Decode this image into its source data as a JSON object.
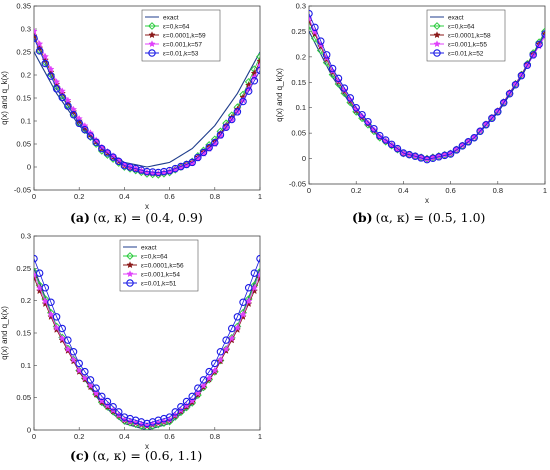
{
  "chart_data": [
    {
      "type": "line",
      "panel_label": "(a)",
      "caption": "(α, κ) = (0.4, 0.9)",
      "xlabel": "x",
      "ylabel": "q(x) and q_k(x)",
      "xlim": [
        0,
        1
      ],
      "ylim": [
        -0.05,
        0.35
      ],
      "xticks": [
        0,
        0.2,
        0.4,
        0.6,
        0.8,
        1
      ],
      "xtick_labels": [
        "0",
        "0.2",
        "0.4",
        "0.6",
        "0.8",
        "1"
      ],
      "yticks": [
        -0.05,
        0,
        0.05,
        0.1,
        0.15,
        0.2,
        0.25,
        0.3,
        0.35
      ],
      "ytick_labels": [
        "-0.05",
        "0",
        "0.05",
        "0.1",
        "0.15",
        "0.2",
        "0.25",
        "0.3",
        "0.35"
      ],
      "legend_position": "top-right",
      "series": [
        {
          "name": "exact",
          "color": "#1f3d8c",
          "marker": "none",
          "x": [
            0,
            0.1,
            0.2,
            0.3,
            0.4,
            0.5,
            0.6,
            0.7,
            0.8,
            0.9,
            1
          ],
          "y": [
            0.25,
            0.16,
            0.09,
            0.04,
            0.01,
            0.0,
            0.01,
            0.04,
            0.09,
            0.16,
            0.25
          ]
        },
        {
          "name": "ε=0,k=64",
          "color": "#2ecc40",
          "marker": "diamond",
          "x": [
            0,
            0.1,
            0.2,
            0.3,
            0.4,
            0.5,
            0.55,
            0.6,
            0.7,
            0.8,
            0.9,
            1
          ],
          "y": [
            0.28,
            0.175,
            0.095,
            0.035,
            0.0,
            -0.015,
            -0.017,
            -0.012,
            0.012,
            0.06,
            0.13,
            0.24
          ]
        },
        {
          "name": "ε=0.0001,k=59",
          "color": "#8b1a1a",
          "marker": "star",
          "x": [
            0,
            0.1,
            0.2,
            0.3,
            0.4,
            0.5,
            0.55,
            0.6,
            0.7,
            0.8,
            0.9,
            1
          ],
          "y": [
            0.285,
            0.18,
            0.1,
            0.04,
            0.003,
            -0.013,
            -0.015,
            -0.01,
            0.01,
            0.055,
            0.125,
            0.23
          ]
        },
        {
          "name": "ε=0.001,k=57",
          "color": "#e040fb",
          "marker": "star",
          "x": [
            0,
            0.1,
            0.2,
            0.3,
            0.4,
            0.5,
            0.55,
            0.6,
            0.7,
            0.8,
            0.9,
            1
          ],
          "y": [
            0.295,
            0.185,
            0.105,
            0.043,
            0.005,
            -0.012,
            -0.014,
            -0.01,
            0.008,
            0.05,
            0.12,
            0.22
          ]
        },
        {
          "name": "ε=0.01,k=53",
          "color": "#1a1ae6",
          "marker": "circle",
          "x": [
            0,
            0.1,
            0.2,
            0.3,
            0.4,
            0.5,
            0.55,
            0.6,
            0.7,
            0.8,
            0.9,
            1
          ],
          "y": [
            0.28,
            0.17,
            0.095,
            0.04,
            0.003,
            -0.01,
            -0.012,
            -0.008,
            0.01,
            0.053,
            0.12,
            0.21
          ]
        }
      ]
    },
    {
      "type": "line",
      "panel_label": "(b)",
      "caption": "(α, κ) = (0.5, 1.0)",
      "xlabel": "x",
      "ylabel": "q(x) and q_k(x)",
      "xlim": [
        0,
        1
      ],
      "ylim": [
        -0.05,
        0.3
      ],
      "xticks": [
        0,
        0.2,
        0.4,
        0.6,
        0.8,
        1
      ],
      "xtick_labels": [
        "0",
        "0.2",
        "0.4",
        "0.6",
        "0.8",
        "1"
      ],
      "yticks": [
        -0.05,
        0,
        0.05,
        0.1,
        0.15,
        0.2,
        0.25,
        0.3
      ],
      "ytick_labels": [
        "-0.05",
        "0",
        "0.05",
        "0.1",
        "0.15",
        "0.2",
        "0.25",
        "0.3"
      ],
      "legend_position": "top-right",
      "series": [
        {
          "name": "exact",
          "color": "#1f3d8c",
          "marker": "none",
          "x": [
            0,
            0.1,
            0.2,
            0.3,
            0.4,
            0.5,
            0.6,
            0.7,
            0.8,
            0.9,
            1
          ],
          "y": [
            0.25,
            0.16,
            0.09,
            0.04,
            0.01,
            0.0,
            0.01,
            0.04,
            0.09,
            0.16,
            0.25
          ]
        },
        {
          "name": "ε=0,k=64",
          "color": "#2ecc40",
          "marker": "diamond",
          "x": [
            0,
            0.1,
            0.2,
            0.3,
            0.4,
            0.5,
            0.6,
            0.7,
            0.8,
            0.9,
            1
          ],
          "y": [
            0.26,
            0.165,
            0.092,
            0.041,
            0.01,
            0.0,
            0.01,
            0.041,
            0.092,
            0.165,
            0.25
          ]
        },
        {
          "name": "ε=0.0001,k=58",
          "color": "#8b1a1a",
          "marker": "star",
          "x": [
            0,
            0.1,
            0.2,
            0.3,
            0.4,
            0.5,
            0.6,
            0.7,
            0.8,
            0.9,
            1
          ],
          "y": [
            0.27,
            0.17,
            0.095,
            0.042,
            0.01,
            0.0,
            0.01,
            0.042,
            0.094,
            0.165,
            0.245
          ]
        },
        {
          "name": "ε=0.001,k=55",
          "color": "#e040fb",
          "marker": "star",
          "x": [
            0,
            0.1,
            0.2,
            0.3,
            0.4,
            0.5,
            0.6,
            0.7,
            0.8,
            0.9,
            1
          ],
          "y": [
            0.275,
            0.172,
            0.097,
            0.043,
            0.011,
            -0.001,
            0.01,
            0.042,
            0.093,
            0.164,
            0.24
          ]
        },
        {
          "name": "ε=0.01,k=52",
          "color": "#1a1ae6",
          "marker": "circle",
          "x": [
            0,
            0.1,
            0.2,
            0.3,
            0.4,
            0.5,
            0.6,
            0.7,
            0.8,
            0.9,
            1
          ],
          "y": [
            0.285,
            0.177,
            0.1,
            0.045,
            0.011,
            -0.002,
            0.009,
            0.041,
            0.092,
            0.163,
            0.245
          ]
        }
      ]
    },
    {
      "type": "line",
      "panel_label": "(c)",
      "caption": "(α, κ) = (0.6, 1.1)",
      "xlabel": "x",
      "ylabel": "q(x) and q_k(x)",
      "xlim": [
        0,
        1
      ],
      "ylim": [
        0,
        0.3
      ],
      "xticks": [
        0,
        0.2,
        0.4,
        0.6,
        0.8,
        1
      ],
      "xtick_labels": [
        "0",
        "0.2",
        "0.4",
        "0.6",
        "0.8",
        "1"
      ],
      "yticks": [
        0,
        0.05,
        0.1,
        0.15,
        0.2,
        0.25,
        0.3
      ],
      "ytick_labels": [
        "0",
        "0.05",
        "0.1",
        "0.15",
        "0.2",
        "0.25",
        "0.3"
      ],
      "legend_position": "top-center",
      "series": [
        {
          "name": "exact",
          "color": "#1f3d8c",
          "marker": "none",
          "x": [
            0,
            0.1,
            0.2,
            0.3,
            0.4,
            0.5,
            0.6,
            0.7,
            0.8,
            0.9,
            1
          ],
          "y": [
            0.25,
            0.16,
            0.09,
            0.04,
            0.01,
            0.0,
            0.01,
            0.04,
            0.09,
            0.16,
            0.25
          ]
        },
        {
          "name": "ε=0,k=64",
          "color": "#2ecc40",
          "marker": "diamond",
          "x": [
            0,
            0.1,
            0.2,
            0.3,
            0.4,
            0.5,
            0.6,
            0.7,
            0.8,
            0.9,
            1
          ],
          "y": [
            0.245,
            0.16,
            0.092,
            0.043,
            0.014,
            0.004,
            0.013,
            0.042,
            0.09,
            0.16,
            0.245
          ]
        },
        {
          "name": "ε=0.0001,k=56",
          "color": "#8b1a1a",
          "marker": "star",
          "x": [
            0,
            0.1,
            0.2,
            0.3,
            0.4,
            0.5,
            0.6,
            0.7,
            0.8,
            0.9,
            1
          ],
          "y": [
            0.235,
            0.155,
            0.09,
            0.043,
            0.015,
            0.006,
            0.015,
            0.043,
            0.09,
            0.155,
            0.235
          ]
        },
        {
          "name": "ε=0.001,k=54",
          "color": "#e040fb",
          "marker": "star",
          "x": [
            0,
            0.1,
            0.2,
            0.3,
            0.4,
            0.5,
            0.6,
            0.7,
            0.8,
            0.9,
            1
          ],
          "y": [
            0.24,
            0.158,
            0.092,
            0.045,
            0.016,
            0.007,
            0.016,
            0.045,
            0.092,
            0.158,
            0.24
          ]
        },
        {
          "name": "ε=0.01,k=51",
          "color": "#1a1ae6",
          "marker": "circle",
          "x": [
            0,
            0.1,
            0.2,
            0.3,
            0.4,
            0.5,
            0.6,
            0.7,
            0.8,
            0.9,
            1
          ],
          "y": [
            0.265,
            0.175,
            0.103,
            0.052,
            0.02,
            0.01,
            0.02,
            0.052,
            0.103,
            0.175,
            0.265
          ]
        }
      ]
    }
  ]
}
